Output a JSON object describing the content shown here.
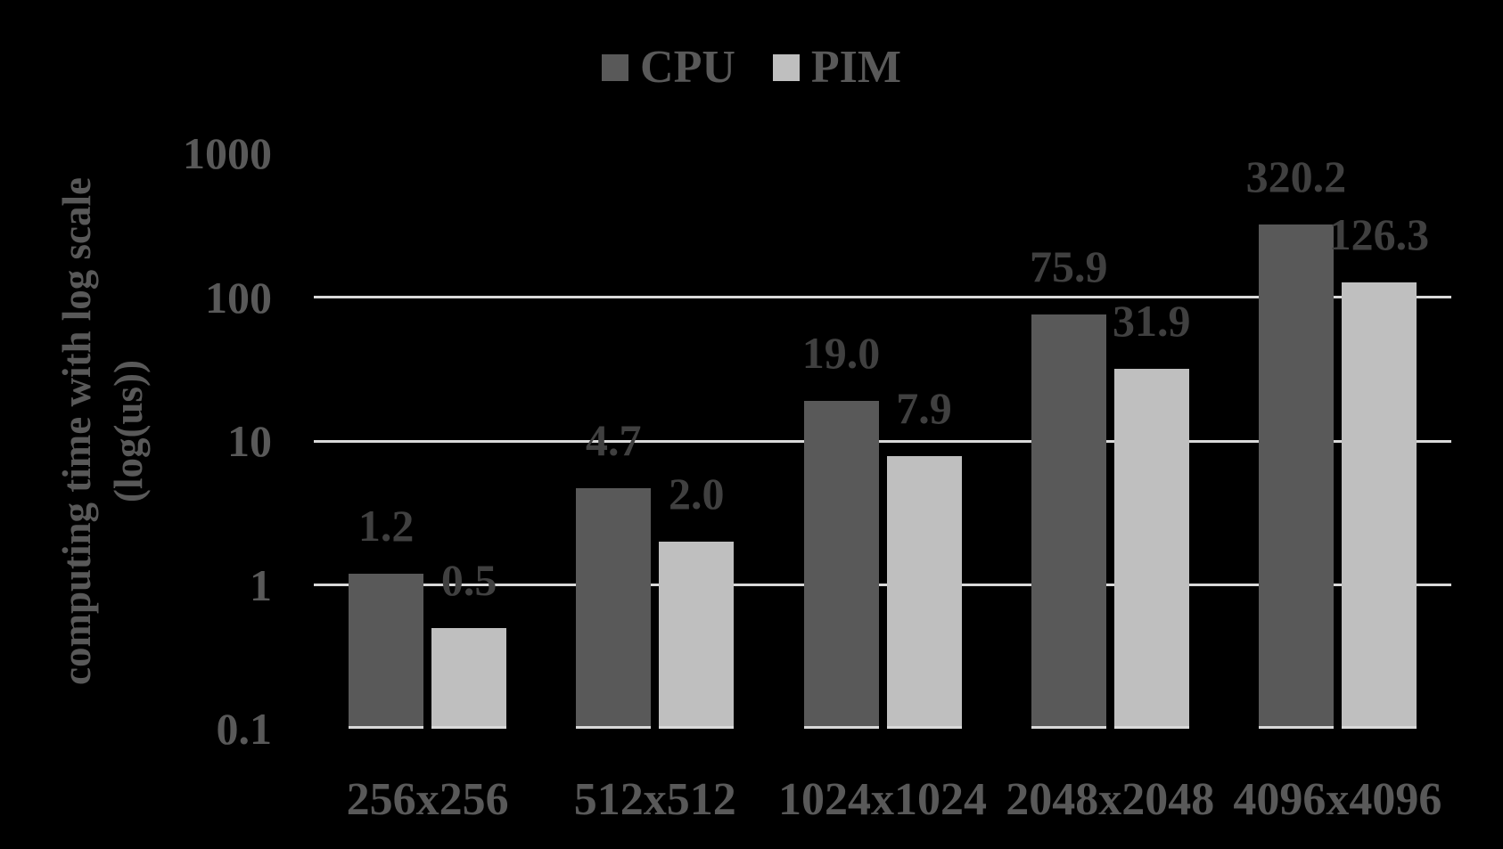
{
  "legend": {
    "items": [
      {
        "label": "CPU",
        "color": "#595959"
      },
      {
        "label": "PIM",
        "color": "#BFBFBF"
      }
    ]
  },
  "y_axis": {
    "title_line1": "computing time with log scale",
    "title_line2": "(log(us))",
    "tick_labels": [
      "1000",
      "100",
      "10",
      "1",
      "0.1"
    ],
    "tick_values": [
      1000,
      100,
      10,
      1,
      0.1
    ]
  },
  "chart_data": {
    "type": "bar",
    "title": "",
    "xlabel": "",
    "ylabel": "computing time with log scale (log(us))",
    "log_scale": true,
    "ylim": [
      0.1,
      1000
    ],
    "grid": "horizontal",
    "gridlines_at": [
      1,
      10,
      100
    ],
    "legend_position": "top",
    "categories": [
      "256x256",
      "512x512",
      "1024x1024",
      "2048x2048",
      "4096x4096"
    ],
    "series": [
      {
        "name": "CPU",
        "color": "#595959",
        "values": [
          1.2,
          4.7,
          19.0,
          75.9,
          320.2
        ],
        "value_labels": [
          "1.2",
          "4.7",
          "19.0",
          "75.9",
          "320.2"
        ]
      },
      {
        "name": "PIM",
        "color": "#BFBFBF",
        "values": [
          0.5,
          2.0,
          7.9,
          31.9,
          126.3
        ],
        "value_labels": [
          "0.5",
          "2.0",
          "7.9",
          "31.9",
          "126.3"
        ]
      }
    ],
    "colors": {
      "background": "#000000",
      "gridline": "#D9D9D9",
      "value_label_text": "#404040",
      "axis_text": "#595959"
    }
  }
}
